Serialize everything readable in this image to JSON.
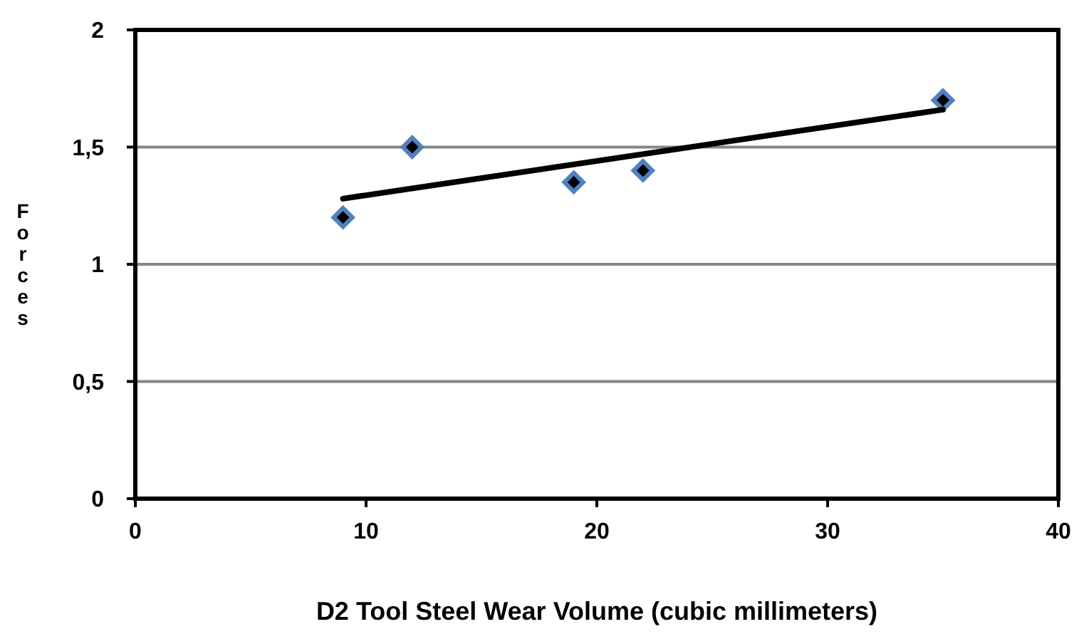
{
  "chart_data": {
    "type": "scatter",
    "xlabel": "D2 Tool Steel Wear Volume (cubic millimeters)",
    "ylabel": "Forces",
    "xlim": [
      0,
      40
    ],
    "xticks": [
      0,
      10,
      20,
      30,
      40
    ],
    "ylim": [
      0,
      2
    ],
    "yticks": [
      0,
      {
        "value": 0.5,
        "label": "0,5"
      },
      1,
      {
        "value": 1.5,
        "label": "1,5"
      },
      2
    ],
    "grid": "y",
    "marker": "diamond",
    "x": [
      9,
      12,
      19,
      22,
      35
    ],
    "series": [
      {
        "color": "#4f81bd",
        "values": [
          1.2,
          1.5,
          1.35,
          1.4,
          1.7
        ]
      },
      {
        "type": "line",
        "color": "#000000",
        "x": [
          9,
          35
        ],
        "values": [
          1.28,
          1.66
        ],
        "marker": "none",
        "line_style": "solid"
      }
    ]
  }
}
